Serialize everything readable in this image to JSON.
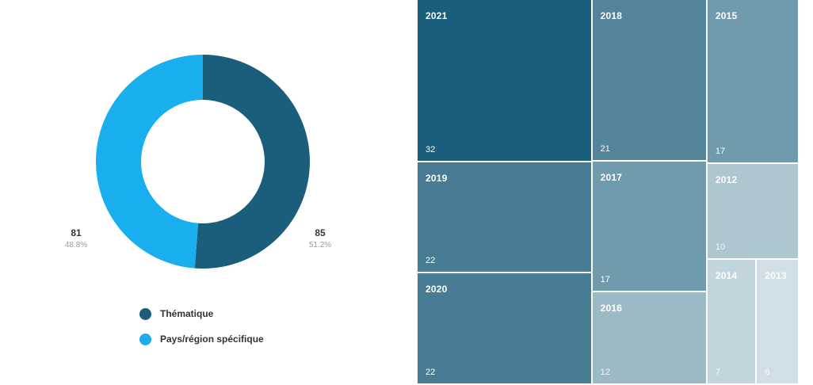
{
  "chart_data": [
    {
      "type": "pie",
      "style": "donut",
      "categories": [
        "Thématique",
        "Pays/région spécifique"
      ],
      "values": [
        85,
        81
      ],
      "percent_labels": [
        "51.2%",
        "48.8%"
      ],
      "colors": [
        "#1b5e7b",
        "#19aeee"
      ],
      "legend": "bottom"
    },
    {
      "type": "treemap",
      "items": [
        {
          "label": "2021",
          "value": 32,
          "color": "#1b5e7b"
        },
        {
          "label": "2019",
          "value": 22,
          "color": "#487c94"
        },
        {
          "label": "2020",
          "value": 22,
          "color": "#487c94"
        },
        {
          "label": "2018",
          "value": 21,
          "color": "#548499"
        },
        {
          "label": "2015",
          "value": 17,
          "color": "#6f9bad"
        },
        {
          "label": "2017",
          "value": 17,
          "color": "#6f9bad"
        },
        {
          "label": "2016",
          "value": 12,
          "color": "#9cbac6"
        },
        {
          "label": "2012",
          "value": 10,
          "color": "#adc6d0"
        },
        {
          "label": "2014",
          "value": 7,
          "color": "#c2d5dd"
        },
        {
          "label": "2013",
          "value": 6,
          "color": "#d0dfe5"
        }
      ]
    }
  ]
}
